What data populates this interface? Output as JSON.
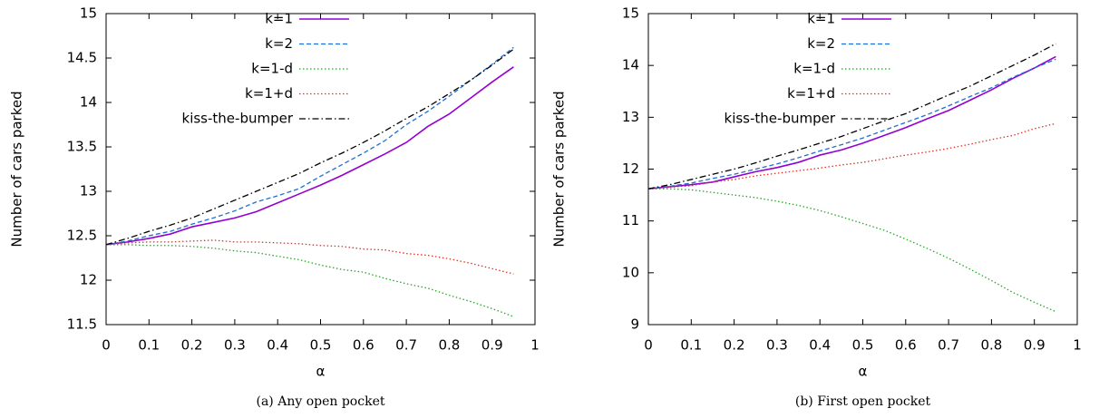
{
  "chart_data": [
    {
      "type": "line",
      "caption": "(a) Any open pocket",
      "xlabel": "α",
      "ylabel": "Number of cars parked",
      "legend": "top",
      "x": [
        0,
        0.05,
        0.1,
        0.15,
        0.2,
        0.25,
        0.3,
        0.35,
        0.4,
        0.45,
        0.5,
        0.55,
        0.6,
        0.65,
        0.7,
        0.75,
        0.8,
        0.85,
        0.9,
        0.95
      ],
      "xlim": [
        0,
        1
      ],
      "xticks": [
        0,
        0.1,
        0.2,
        0.3,
        0.4,
        0.5,
        0.6,
        0.7,
        0.8,
        0.9,
        1
      ],
      "ylim": [
        11.5,
        15
      ],
      "yticks": [
        11.5,
        12,
        12.5,
        13,
        13.5,
        14,
        14.5,
        15
      ],
      "series": [
        {
          "name": "k=1",
          "color": "#9400d3",
          "dash": "solid",
          "values": [
            12.4,
            12.43,
            12.47,
            12.52,
            12.6,
            12.65,
            12.7,
            12.77,
            12.87,
            12.97,
            13.07,
            13.18,
            13.3,
            13.42,
            13.55,
            13.73,
            13.87,
            14.05,
            14.23,
            14.4
          ]
        },
        {
          "name": "k=2",
          "color": "#1f6fd0",
          "dash": "dashed",
          "values": [
            12.4,
            12.44,
            12.5,
            12.55,
            12.63,
            12.7,
            12.78,
            12.88,
            12.95,
            13.03,
            13.17,
            13.3,
            13.43,
            13.57,
            13.75,
            13.9,
            14.07,
            14.25,
            14.43,
            14.62
          ]
        },
        {
          "name": "k=1-d",
          "color": "#22aa22",
          "dash": "dotted",
          "values": [
            12.4,
            12.4,
            12.39,
            12.39,
            12.38,
            12.36,
            12.33,
            12.31,
            12.27,
            12.23,
            12.17,
            12.12,
            12.09,
            12.02,
            11.96,
            11.91,
            11.83,
            11.76,
            11.68,
            11.59
          ]
        },
        {
          "name": "k=1+d",
          "color": "#e0301e",
          "dash": "dotted",
          "values": [
            12.4,
            12.42,
            12.43,
            12.43,
            12.44,
            12.45,
            12.43,
            12.43,
            12.42,
            12.41,
            12.39,
            12.38,
            12.35,
            12.34,
            12.3,
            12.28,
            12.24,
            12.19,
            12.13,
            12.07
          ]
        },
        {
          "name": "kiss-the-bumper",
          "color": "#000000",
          "dash": "dashdot",
          "values": [
            12.4,
            12.47,
            12.55,
            12.62,
            12.7,
            12.8,
            12.9,
            13.0,
            13.1,
            13.2,
            13.32,
            13.43,
            13.55,
            13.68,
            13.82,
            13.95,
            14.1,
            14.25,
            14.42,
            14.6
          ]
        }
      ]
    },
    {
      "type": "line",
      "caption": "(b) First open pocket",
      "xlabel": "α",
      "ylabel": "Number of cars parked",
      "legend": "top",
      "x": [
        0,
        0.05,
        0.1,
        0.15,
        0.2,
        0.25,
        0.3,
        0.35,
        0.4,
        0.45,
        0.5,
        0.55,
        0.6,
        0.65,
        0.7,
        0.75,
        0.8,
        0.85,
        0.9,
        0.95
      ],
      "xlim": [
        0,
        1
      ],
      "xticks": [
        0,
        0.1,
        0.2,
        0.3,
        0.4,
        0.5,
        0.6,
        0.7,
        0.8,
        0.9,
        1
      ],
      "ylim": [
        9,
        15
      ],
      "yticks": [
        9,
        10,
        11,
        12,
        13,
        14,
        15
      ],
      "series": [
        {
          "name": "k=1",
          "color": "#9400d3",
          "dash": "solid",
          "values": [
            11.62,
            11.66,
            11.7,
            11.75,
            11.85,
            11.95,
            12.03,
            12.13,
            12.27,
            12.37,
            12.5,
            12.65,
            12.8,
            12.97,
            13.13,
            13.33,
            13.53,
            13.75,
            13.95,
            14.17
          ]
        },
        {
          "name": "k=2",
          "color": "#1f6fd0",
          "dash": "dashed",
          "values": [
            11.62,
            11.67,
            11.73,
            11.82,
            11.9,
            12.0,
            12.1,
            12.22,
            12.35,
            12.47,
            12.6,
            12.75,
            12.9,
            13.05,
            13.22,
            13.4,
            13.57,
            13.77,
            13.95,
            14.12
          ]
        },
        {
          "name": "k=1-d",
          "color": "#22aa22",
          "dash": "dotted",
          "values": [
            11.62,
            11.62,
            11.6,
            11.55,
            11.5,
            11.45,
            11.38,
            11.3,
            11.2,
            11.08,
            10.95,
            10.82,
            10.65,
            10.47,
            10.28,
            10.07,
            9.85,
            9.62,
            9.43,
            9.25
          ]
        },
        {
          "name": "k=1+d",
          "color": "#e0301e",
          "dash": "dotted",
          "values": [
            11.62,
            11.65,
            11.68,
            11.75,
            11.8,
            11.87,
            11.92,
            11.97,
            12.02,
            12.08,
            12.13,
            12.2,
            12.27,
            12.33,
            12.4,
            12.48,
            12.57,
            12.65,
            12.78,
            12.88
          ]
        },
        {
          "name": "kiss-the-bumper",
          "color": "#000000",
          "dash": "dashdot",
          "values": [
            11.62,
            11.7,
            11.8,
            11.9,
            12.0,
            12.12,
            12.25,
            12.37,
            12.5,
            12.63,
            12.78,
            12.93,
            13.07,
            13.25,
            13.43,
            13.6,
            13.8,
            14.0,
            14.2,
            14.42
          ]
        }
      ]
    }
  ]
}
